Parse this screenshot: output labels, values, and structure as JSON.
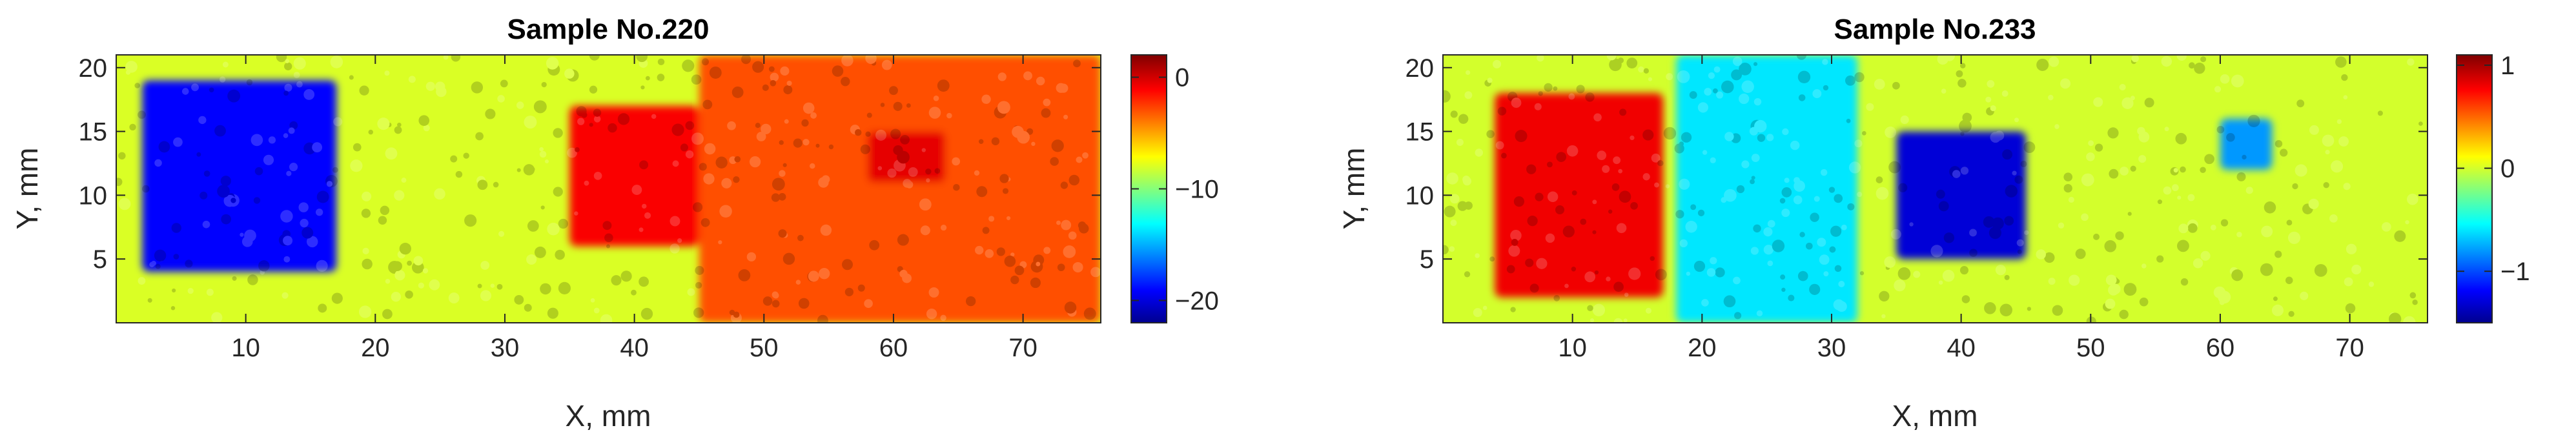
{
  "colors": {
    "colormap": "jet",
    "stops": [
      "#00008f",
      "#0000ff",
      "#00ffff",
      "#ffff00",
      "#ff0000",
      "#800000"
    ]
  },
  "chart_data": [
    {
      "type": "heatmap",
      "title": "Sample No.220",
      "xlabel": "X, mm",
      "ylabel": "Y, mm",
      "xlim": [
        0,
        76
      ],
      "ylim": [
        0,
        21
      ],
      "xticks": [
        10,
        20,
        30,
        40,
        50,
        60,
        70
      ],
      "xtick_labels": [
        "10",
        "20",
        "30",
        "40",
        "50",
        "60",
        "70"
      ],
      "yticks": [
        5,
        10,
        15,
        20
      ],
      "ytick_labels": [
        "5",
        "10",
        "15",
        "20"
      ],
      "clim": [
        -22,
        2
      ],
      "colorbar_ticks": [
        0,
        -10,
        -20
      ],
      "colorbar_tick_labels": [
        "0",
        "−10",
        "−20"
      ],
      "background_value": -8,
      "regions": [
        {
          "x": [
            2,
            17
          ],
          "y": [
            4,
            19
          ],
          "value": -19
        },
        {
          "x": [
            35,
            45
          ],
          "y": [
            6,
            17
          ],
          "value": -1
        },
        {
          "x": [
            45,
            76
          ],
          "y": [
            0,
            21
          ],
          "value": -3
        },
        {
          "x": [
            58,
            64
          ],
          "y": [
            11,
            15
          ],
          "value": -0.5
        }
      ]
    },
    {
      "type": "heatmap",
      "title": "Sample No.233",
      "xlabel": "X, mm",
      "ylabel": "Y, mm",
      "xlim": [
        0,
        76
      ],
      "ylim": [
        0,
        21
      ],
      "xticks": [
        10,
        20,
        30,
        40,
        50,
        60,
        70
      ],
      "xtick_labels": [
        "10",
        "20",
        "30",
        "40",
        "50",
        "60",
        "70"
      ],
      "yticks": [
        5,
        10,
        15,
        20
      ],
      "ytick_labels": [
        "5",
        "10",
        "15",
        "20"
      ],
      "clim": [
        -1.5,
        1.1
      ],
      "colorbar_ticks": [
        1,
        0,
        -1
      ],
      "colorbar_tick_labels": [
        "1",
        "0",
        "−1"
      ],
      "background_value": 0,
      "regions": [
        {
          "x": [
            4,
            17
          ],
          "y": [
            2,
            18
          ],
          "value": 0.8
        },
        {
          "x": [
            18,
            32
          ],
          "y": [
            0,
            21
          ],
          "value": -0.6
        },
        {
          "x": [
            35,
            45
          ],
          "y": [
            5,
            15
          ],
          "value": -1.3
        },
        {
          "x": [
            60,
            64
          ],
          "y": [
            12,
            16
          ],
          "value": -0.8
        }
      ]
    }
  ]
}
